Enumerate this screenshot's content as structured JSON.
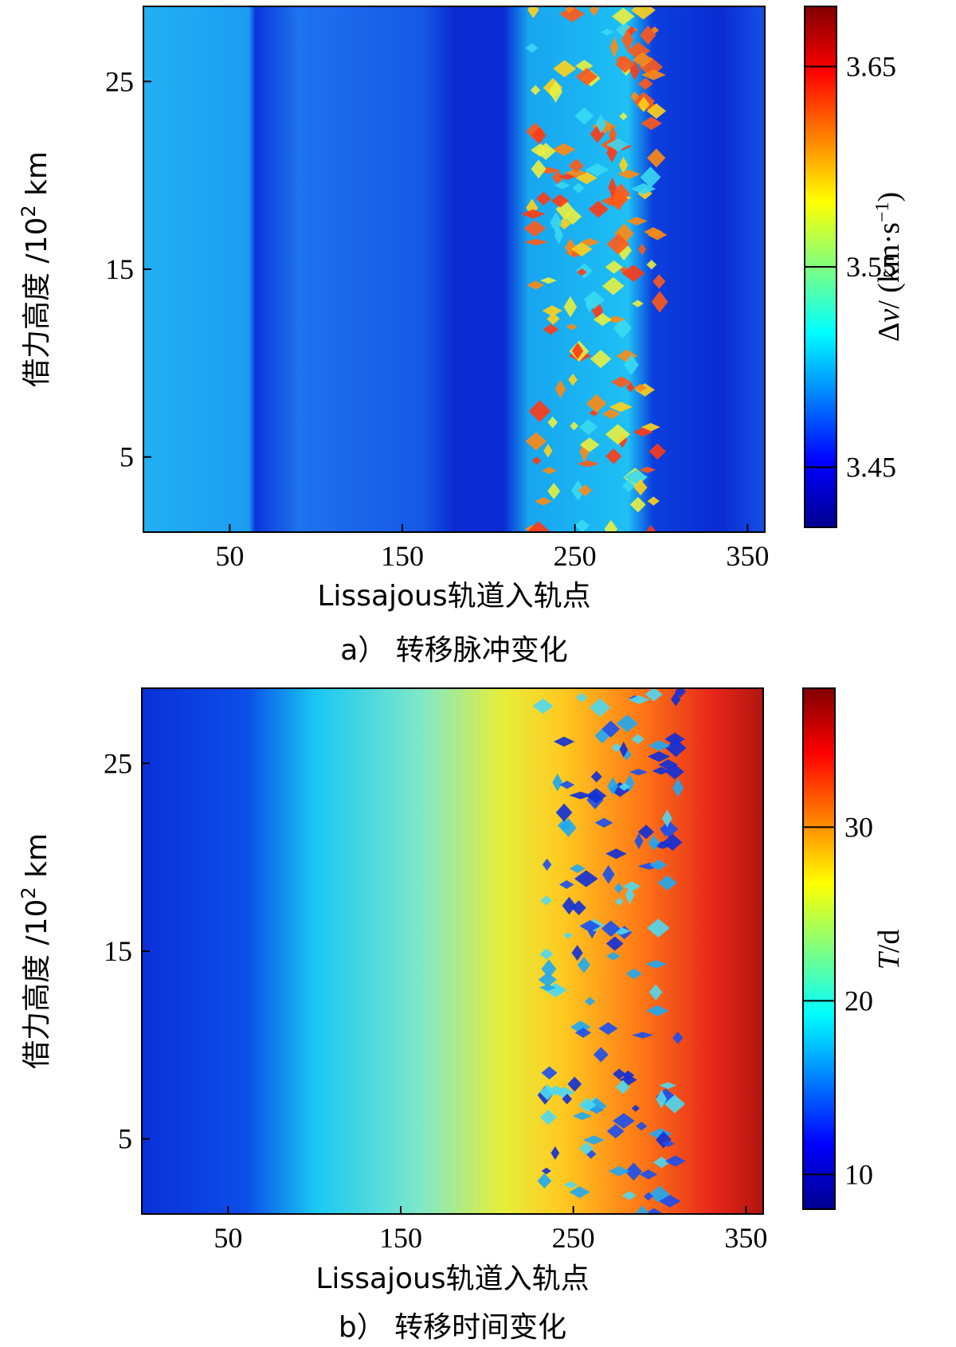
{
  "chart_data": [
    {
      "type": "heatmap",
      "caption": "a） 转移脉冲变化",
      "xlabel": "Lissajous轨道入轨点",
      "ylabel_prefix": "借力高度 /10",
      "ylabel_sup": "2",
      "ylabel_suffix": " km",
      "xticks": [
        50,
        150,
        250,
        350
      ],
      "yticks": [
        5,
        15,
        25
      ],
      "xlim": [
        0,
        360
      ],
      "ylim": [
        1,
        29
      ],
      "colorbar": {
        "label_delta": "Δ",
        "label_var": "v",
        "label_unit": "/ (km·s",
        "label_unit_sup": "−1",
        "label_unit_end": ")",
        "ticks": [
          3.45,
          3.55,
          3.65
        ],
        "tick_labels": [
          "3.45",
          "3.55",
          "3.65"
        ],
        "range": [
          3.42,
          3.68
        ]
      },
      "colors": {
        "base_low": "#0a2fd6",
        "base_mid": "#1f7ff2",
        "hot": "#e8361d"
      }
    },
    {
      "type": "heatmap",
      "caption": "b） 转移时间变化",
      "xlabel": "Lissajous轨道入轨点",
      "ylabel_prefix": "借力高度 /10",
      "ylabel_sup": "2",
      "ylabel_suffix": " km",
      "xticks": [
        50,
        150,
        250,
        350
      ],
      "yticks": [
        5,
        15,
        25
      ],
      "xlim": [
        0,
        360
      ],
      "ylim": [
        1,
        29
      ],
      "colorbar": {
        "label_var": "T",
        "label_unit": "/d",
        "ticks": [
          10,
          20,
          30
        ],
        "tick_labels": [
          "10",
          "20",
          "30"
        ],
        "range": [
          8,
          38
        ]
      },
      "colors": {
        "low": "#0a2fd6",
        "mid": "#13e6ef",
        "high": "#e4261a"
      }
    }
  ]
}
